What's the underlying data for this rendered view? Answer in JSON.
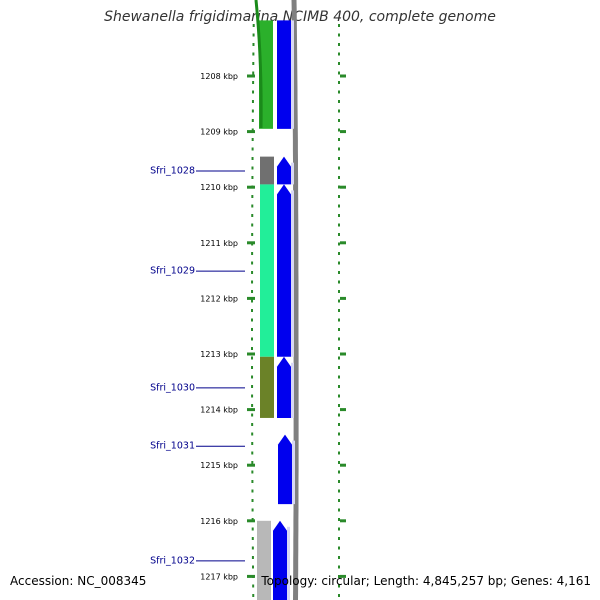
{
  "title": "Shewanella frigidimarina NCIMB 400, complete genome",
  "footer": {
    "accession": "Accession: NC_008345",
    "summary": "Topology: circular; Length: 4,845,257 bp; Genes: 4,161"
  },
  "map": {
    "unit": "kbp",
    "range_kbp": [
      1207.25,
      1217.15
    ],
    "ticks": [
      {
        "value": 1208,
        "label": "1208 kbp"
      },
      {
        "value": 1209,
        "label": "1209 kbp"
      },
      {
        "value": 1210,
        "label": "1210 kbp"
      },
      {
        "value": 1211,
        "label": "1211 kbp"
      },
      {
        "value": 1212,
        "label": "1212 kbp"
      },
      {
        "value": 1213,
        "label": "1213 kbp"
      },
      {
        "value": 1214,
        "label": "1214 kbp"
      },
      {
        "value": 1215,
        "label": "1215 kbp"
      },
      {
        "value": 1216,
        "label": "1216 kbp"
      },
      {
        "value": 1217,
        "label": "1217 kbp"
      }
    ],
    "genes": [
      {
        "label": "",
        "start": 1207.0,
        "end": 1208.95,
        "color": "#2bb02b",
        "arrow": false
      },
      {
        "label": "Sfri_1028",
        "start": 1209.45,
        "end": 1209.95,
        "color": "#707070",
        "arrow": false
      },
      {
        "label": "Sfri_1029",
        "start": 1209.95,
        "end": 1213.05,
        "color": "#22ee99",
        "arrow": false
      },
      {
        "label": "Sfri_1030",
        "start": 1213.05,
        "end": 1214.15,
        "color": "#6b8228",
        "arrow": false
      },
      {
        "label": "Sfri_1031",
        "start": 1214.2,
        "end": 1215.1,
        "color": "",
        "arrow": false
      },
      {
        "label": "Sfri_1032",
        "start": 1216.0,
        "end": 1217.5,
        "color": "#b8b8b8",
        "arrow": false
      }
    ],
    "cds": [
      {
        "start": 1207.0,
        "end": 1208.95,
        "color": "#0000ee",
        "arrow": false
      },
      {
        "start": 1209.45,
        "end": 1209.95,
        "color": "#0000ee",
        "arrow": true
      },
      {
        "start": 1209.95,
        "end": 1213.05,
        "color": "#0000ee",
        "arrow": true
      },
      {
        "start": 1213.05,
        "end": 1214.15,
        "color": "#0000ee",
        "arrow": true
      },
      {
        "start": 1214.45,
        "end": 1215.7,
        "color": "#0000ee",
        "arrow": true
      },
      {
        "start": 1216.0,
        "end": 1217.5,
        "color": "#0000ee",
        "arrow": true
      }
    ],
    "colors": {
      "tick": "#2a8a2a",
      "label_link": "#00008b",
      "backbone": "#808080"
    }
  }
}
